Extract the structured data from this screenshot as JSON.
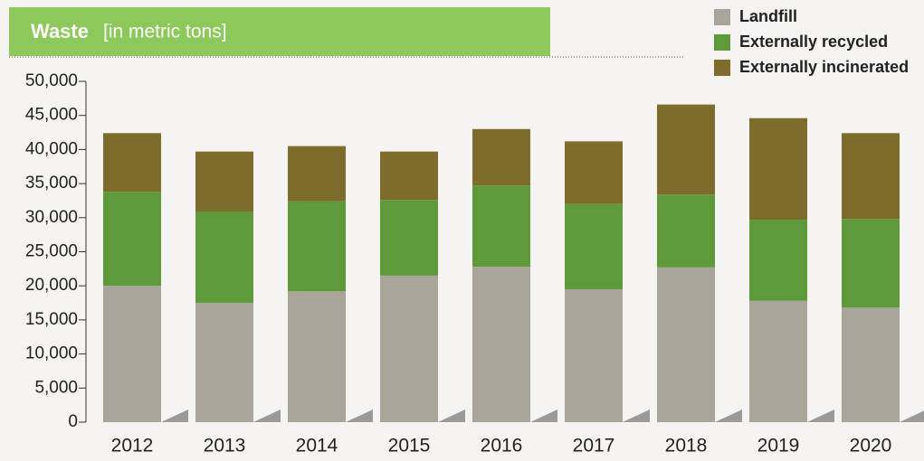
{
  "chart_data": {
    "type": "stacked_bar",
    "title": "Waste",
    "subtitle": "[in metric tons]",
    "categories": [
      "2012",
      "2013",
      "2014",
      "2015",
      "2016",
      "2017",
      "2018",
      "2019",
      "2020"
    ],
    "series": [
      {
        "name": "Landfill",
        "color": "#a9a59a",
        "values": [
          20000,
          17500,
          19200,
          21500,
          22800,
          19500,
          22700,
          17800,
          16800
        ]
      },
      {
        "name": "Externally recycled",
        "color": "#5f9a3a",
        "values": [
          13800,
          13400,
          13200,
          11100,
          11900,
          12500,
          10700,
          11900,
          13000
        ]
      },
      {
        "name": "Externally incinerated",
        "color": "#7d6c2c",
        "values": [
          8600,
          8800,
          8100,
          7100,
          8300,
          9200,
          13200,
          14900,
          12600
        ]
      }
    ],
    "ylim": [
      0,
      50000
    ],
    "yticks": [
      0,
      {
        "value": 5000,
        "label": "5,000"
      },
      {
        "value": 10000,
        "label": "10,000"
      },
      {
        "value": 15000,
        "label": "15,000"
      },
      {
        "value": 20000,
        "label": "20,000"
      },
      {
        "value": 25000,
        "label": "25,000"
      },
      {
        "value": 30000,
        "label": "30,000"
      },
      {
        "value": 35000,
        "label": "35,000"
      },
      {
        "value": 40000,
        "label": "40,000"
      },
      {
        "value": 45000,
        "label": "45,000"
      },
      {
        "value": 50000,
        "label": "50,000"
      }
    ],
    "legend": "top-right"
  }
}
